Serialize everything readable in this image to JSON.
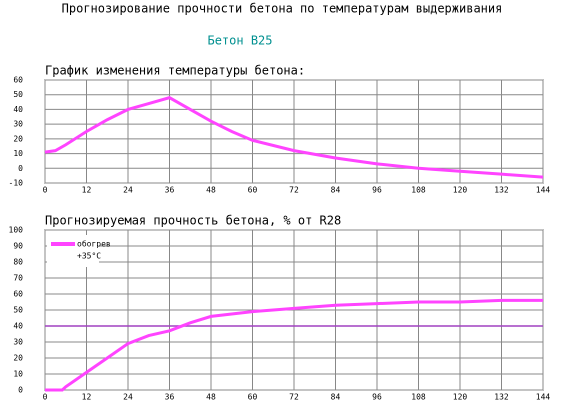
{
  "header": {
    "title": "Прогнозирование прочности бетона по температурам выдерживания",
    "subtitle": "Бетон B25"
  },
  "chart_data": [
    {
      "type": "line",
      "title": "График изменения температуры бетона:",
      "x": [
        0,
        3,
        6,
        12,
        18,
        24,
        30,
        36,
        42,
        48,
        54,
        60,
        72,
        84,
        96,
        108,
        120,
        132,
        144
      ],
      "values": [
        11,
        12,
        16,
        25,
        33,
        40,
        44,
        48,
        40,
        32,
        25,
        19,
        12,
        7,
        3,
        0,
        -2,
        -4,
        -6
      ],
      "color": "#ff44ff",
      "xlim": [
        0,
        144
      ],
      "xticks": [
        0,
        12,
        24,
        36,
        48,
        60,
        72,
        84,
        96,
        108,
        120,
        132,
        144
      ],
      "ylim": [
        -10,
        60
      ],
      "yticks": [
        -10,
        0,
        10,
        20,
        30,
        40,
        50,
        60
      ],
      "grid": true
    },
    {
      "type": "line",
      "title": "Прогнозируемая прочность бетона, % от R28",
      "x": [
        0,
        5,
        6,
        12,
        18,
        24,
        30,
        36,
        42,
        48,
        60,
        72,
        84,
        96,
        108,
        120,
        132,
        144
      ],
      "series": [
        {
          "name": "обогрев",
          "note": "+35°C",
          "color": "#ff44ff",
          "values": [
            0,
            0,
            2,
            11,
            20,
            29,
            34,
            37,
            42,
            46,
            49,
            51,
            53,
            54,
            55,
            55,
            56,
            56
          ]
        }
      ],
      "reference_line": {
        "value": 40,
        "color": "#a040c0"
      },
      "xlim": [
        0,
        144
      ],
      "xticks": [
        0,
        12,
        24,
        36,
        48,
        60,
        72,
        84,
        96,
        108,
        120,
        132,
        144
      ],
      "ylim": [
        0,
        100
      ],
      "yticks": [
        0,
        10,
        20,
        30,
        40,
        50,
        60,
        70,
        80,
        90,
        100
      ],
      "grid": true,
      "legend": "top-left"
    }
  ]
}
